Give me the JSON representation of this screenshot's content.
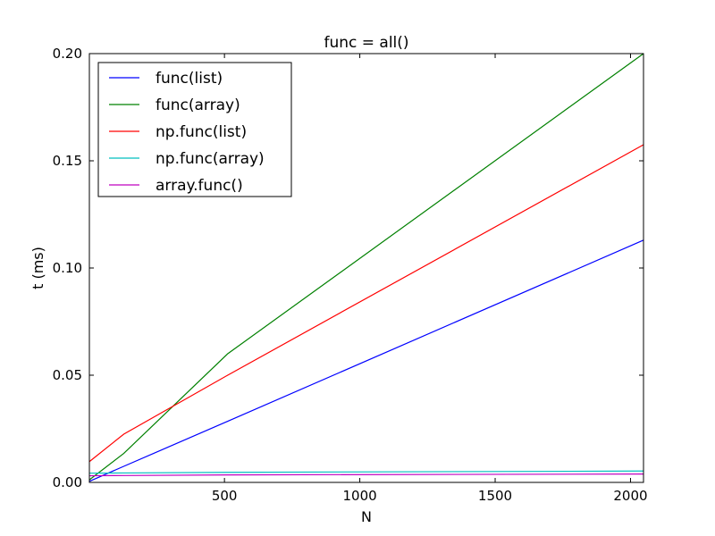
{
  "chart_data": {
    "type": "line",
    "title": "func = all()",
    "xlabel": "N",
    "ylabel": "t (ms)",
    "xlim": [
      1,
      2048
    ],
    "ylim": [
      0,
      0.2
    ],
    "x": [
      1,
      128,
      512,
      2048
    ],
    "xticks": [
      500,
      1000,
      1500,
      2000
    ],
    "yticks": [
      0.0,
      0.05,
      0.1,
      0.15,
      0.2
    ],
    "xtick_labels": [
      "500",
      "1000",
      "1500",
      "2000"
    ],
    "ytick_labels": [
      "0.00",
      "0.05",
      "0.10",
      "0.15",
      "0.20"
    ],
    "grid": false,
    "legend_position": "upper-left",
    "series": [
      {
        "name": "func(list)",
        "color": "#0000ff",
        "values": [
          0.0005,
          0.0075,
          0.0285,
          0.113
        ]
      },
      {
        "name": "func(array)",
        "color": "#008000",
        "values": [
          0.0012,
          0.0135,
          0.06,
          0.2
        ]
      },
      {
        "name": "np.func(list)",
        "color": "#ff0000",
        "values": [
          0.0097,
          0.0225,
          0.05,
          0.1575
        ]
      },
      {
        "name": "np.func(array)",
        "color": "#00bfbf",
        "values": [
          0.0043,
          0.0044,
          0.0047,
          0.0053
        ]
      },
      {
        "name": "array.func()",
        "color": "#bf00bf",
        "values": [
          0.0031,
          0.0032,
          0.0035,
          0.0039
        ]
      }
    ]
  }
}
